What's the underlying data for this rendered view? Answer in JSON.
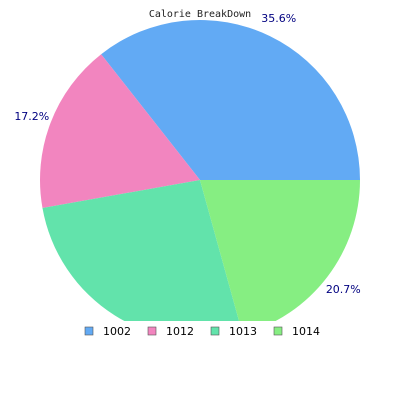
{
  "chart_data": {
    "type": "pie",
    "title": "Calorie BreakDown",
    "categories": [
      "1002",
      "1012",
      "1013",
      "1014"
    ],
    "values": [
      35.6,
      17.2,
      26.5,
      20.7
    ],
    "colors": [
      "#62aaf4",
      "#f285bf",
      "#62e3ab",
      "#86ee82"
    ],
    "data_labels": [
      "35.6%",
      "17.2%",
      "",
      "20.7%"
    ],
    "start_angle_deg": 0,
    "direction": "counterclockwise",
    "legend_placement": "bottom"
  }
}
